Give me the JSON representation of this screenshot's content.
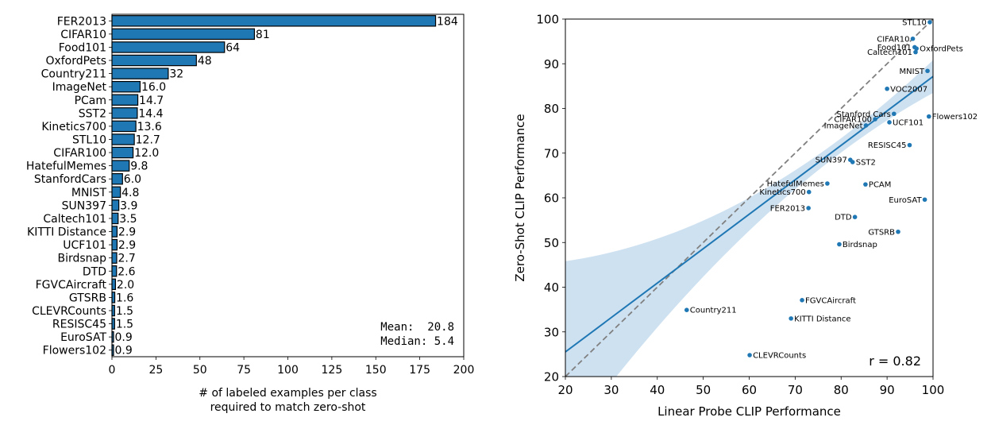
{
  "chart_data": [
    {
      "type": "bar",
      "orientation": "horizontal",
      "categories": [
        "FER2013",
        "CIFAR10",
        "Food101",
        "OxfordPets",
        "Country211",
        "ImageNet",
        "PCam",
        "SST2",
        "Kinetics700",
        "STL10",
        "CIFAR100",
        "HatefulMemes",
        "StanfordCars",
        "MNIST",
        "SUN397",
        "Caltech101",
        "KITTI Distance",
        "UCF101",
        "Birdsnap",
        "DTD",
        "FGVCAircraft",
        "GTSRB",
        "CLEVRCounts",
        "RESISC45",
        "EuroSAT",
        "Flowers102"
      ],
      "values": [
        184,
        81,
        64,
        48,
        32,
        16.0,
        14.7,
        14.4,
        13.6,
        12.7,
        12.0,
        9.8,
        6.0,
        4.8,
        3.9,
        3.5,
        2.9,
        2.9,
        2.7,
        2.6,
        2.0,
        1.6,
        1.5,
        1.5,
        0.9,
        0.9
      ],
      "value_labels": [
        "184",
        "81",
        "64",
        "48",
        "32",
        "16.0",
        "14.7",
        "14.4",
        "13.6",
        "12.7",
        "12.0",
        "9.8",
        "6.0",
        "4.8",
        "3.9",
        "3.5",
        "2.9",
        "2.9",
        "2.7",
        "2.6",
        "2.0",
        "1.6",
        "1.5",
        "1.5",
        "0.9",
        "0.9"
      ],
      "xlabel_lines": [
        "# of labeled examples per class",
        "required to match zero-shot"
      ],
      "xlim": [
        0,
        200
      ],
      "xticks": [
        0,
        25,
        50,
        75,
        100,
        125,
        150,
        175,
        200
      ],
      "summary_lines": [
        "Mean:  20.8",
        "Median: 5.4"
      ],
      "colors": {
        "bar": "#1f77b4",
        "edge": "#000000"
      },
      "grid": false
    },
    {
      "type": "scatter",
      "xlabel": "Linear Probe CLIP Performance",
      "ylabel": "Zero-Shot CLIP Performance",
      "xlim": [
        20,
        100
      ],
      "ylim": [
        20,
        100
      ],
      "xticks": [
        20,
        30,
        40,
        50,
        60,
        70,
        80,
        90,
        100
      ],
      "yticks": [
        20,
        30,
        40,
        50,
        60,
        70,
        80,
        90,
        100
      ],
      "annotation": "r = 0.82",
      "points": [
        {
          "label": "STL10",
          "x": 99.3,
          "y": 99.3,
          "anchor": "end"
        },
        {
          "label": "CIFAR10",
          "x": 95.6,
          "y": 95.6,
          "anchor": "end"
        },
        {
          "label": "Food101",
          "x": 96.0,
          "y": 93.7,
          "anchor": "end"
        },
        {
          "label": "OxfordPets",
          "x": 96.4,
          "y": 93.4,
          "anchor": "start"
        },
        {
          "label": "Caltech101",
          "x": 96.2,
          "y": 92.6,
          "anchor": "end"
        },
        {
          "label": "MNIST",
          "x": 98.8,
          "y": 88.4,
          "anchor": "end"
        },
        {
          "label": "VOC2007",
          "x": 90.0,
          "y": 84.4,
          "anchor": "start"
        },
        {
          "label": "Flowers102",
          "x": 99.1,
          "y": 78.2,
          "anchor": "start"
        },
        {
          "label": "Stanford Cars",
          "x": 91.5,
          "y": 78.8,
          "anchor": "end"
        },
        {
          "label": "CIFAR100",
          "x": 87.4,
          "y": 77.6,
          "anchor": "end"
        },
        {
          "label": "UCF101",
          "x": 90.5,
          "y": 76.9,
          "anchor": "start"
        },
        {
          "label": "ImageNet",
          "x": 85.4,
          "y": 76.2,
          "anchor": "end"
        },
        {
          "label": "RESISC45",
          "x": 94.9,
          "y": 71.8,
          "anchor": "end"
        },
        {
          "label": "SUN397",
          "x": 82.0,
          "y": 68.5,
          "anchor": "end"
        },
        {
          "label": "SST2",
          "x": 82.5,
          "y": 68.0,
          "anchor": "start"
        },
        {
          "label": "HatefulMemes",
          "x": 77.0,
          "y": 63.2,
          "anchor": "end"
        },
        {
          "label": "PCAM",
          "x": 85.3,
          "y": 63.0,
          "anchor": "start"
        },
        {
          "label": "Kinetics700",
          "x": 73.0,
          "y": 61.3,
          "anchor": "end"
        },
        {
          "label": "EuroSAT",
          "x": 98.2,
          "y": 59.6,
          "anchor": "end"
        },
        {
          "label": "FER2013",
          "x": 72.9,
          "y": 57.7,
          "anchor": "end"
        },
        {
          "label": "DTD",
          "x": 83.0,
          "y": 55.7,
          "anchor": "end"
        },
        {
          "label": "GTSRB",
          "x": 92.4,
          "y": 52.4,
          "anchor": "end"
        },
        {
          "label": "Birdsnap",
          "x": 79.6,
          "y": 49.6,
          "anchor": "start"
        },
        {
          "label": "Country211",
          "x": 46.4,
          "y": 34.9,
          "anchor": "start"
        },
        {
          "label": "FGVCAircraft",
          "x": 71.5,
          "y": 37.1,
          "anchor": "start"
        },
        {
          "label": "KITTI Distance",
          "x": 69.1,
          "y": 33.0,
          "anchor": "start"
        },
        {
          "label": "CLEVRCounts",
          "x": 60.1,
          "y": 24.8,
          "anchor": "start"
        }
      ],
      "identity_line": true,
      "regression": {
        "slope": 0.7705,
        "intercept": 10.1
      },
      "colors": {
        "point": "#1f77b4",
        "line": "#1f77b4",
        "band": "#aecde8",
        "identity": "#808080"
      },
      "grid": false
    }
  ]
}
